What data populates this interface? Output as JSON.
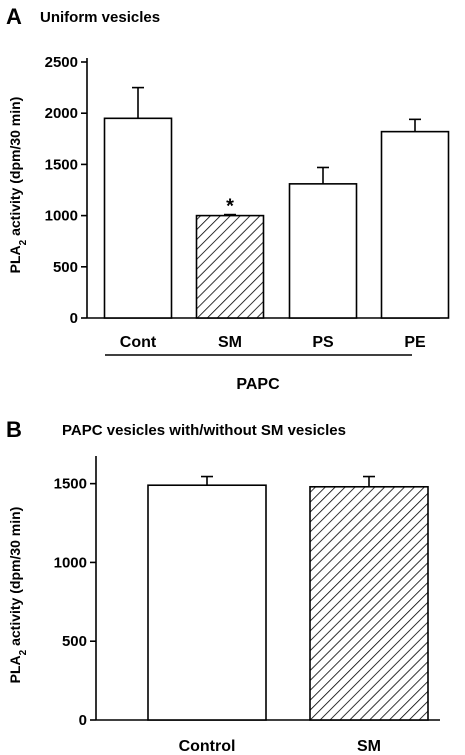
{
  "chart_data": [
    {
      "type": "bar",
      "panel_label": "A",
      "title": "Uniform vesicles",
      "ylabel_main": "PLA",
      "ylabel_sub": "2",
      "ylabel_rest": " activity (dpm/30 min)",
      "categories": [
        "Cont",
        "SM",
        "PS",
        "PE"
      ],
      "values": [
        1950,
        1000,
        1310,
        1820
      ],
      "errors": [
        300,
        10,
        160,
        120
      ],
      "fills": [
        "white",
        "hatched",
        "white",
        "white"
      ],
      "annotations": [
        {
          "category": "SM",
          "text": "*"
        }
      ],
      "group_label": "PAPC",
      "ylim": [
        0,
        2500
      ],
      "yticks": [
        "0",
        "500",
        "1000",
        "1500",
        "2000",
        "2500"
      ],
      "grid": false
    },
    {
      "type": "bar",
      "panel_label": "B",
      "title": "PAPC vesicles with/without SM vesicles",
      "ylabel_main": "PLA",
      "ylabel_sub": "2",
      "ylabel_rest": " activity (dpm/30 min)",
      "categories": [
        "Control",
        "SM"
      ],
      "values": [
        1490,
        1480
      ],
      "errors": [
        55,
        65
      ],
      "fills": [
        "white",
        "hatched"
      ],
      "ylim": [
        0,
        1650
      ],
      "yticks": [
        "0",
        "500",
        "1000",
        "1500"
      ],
      "grid": false
    }
  ]
}
